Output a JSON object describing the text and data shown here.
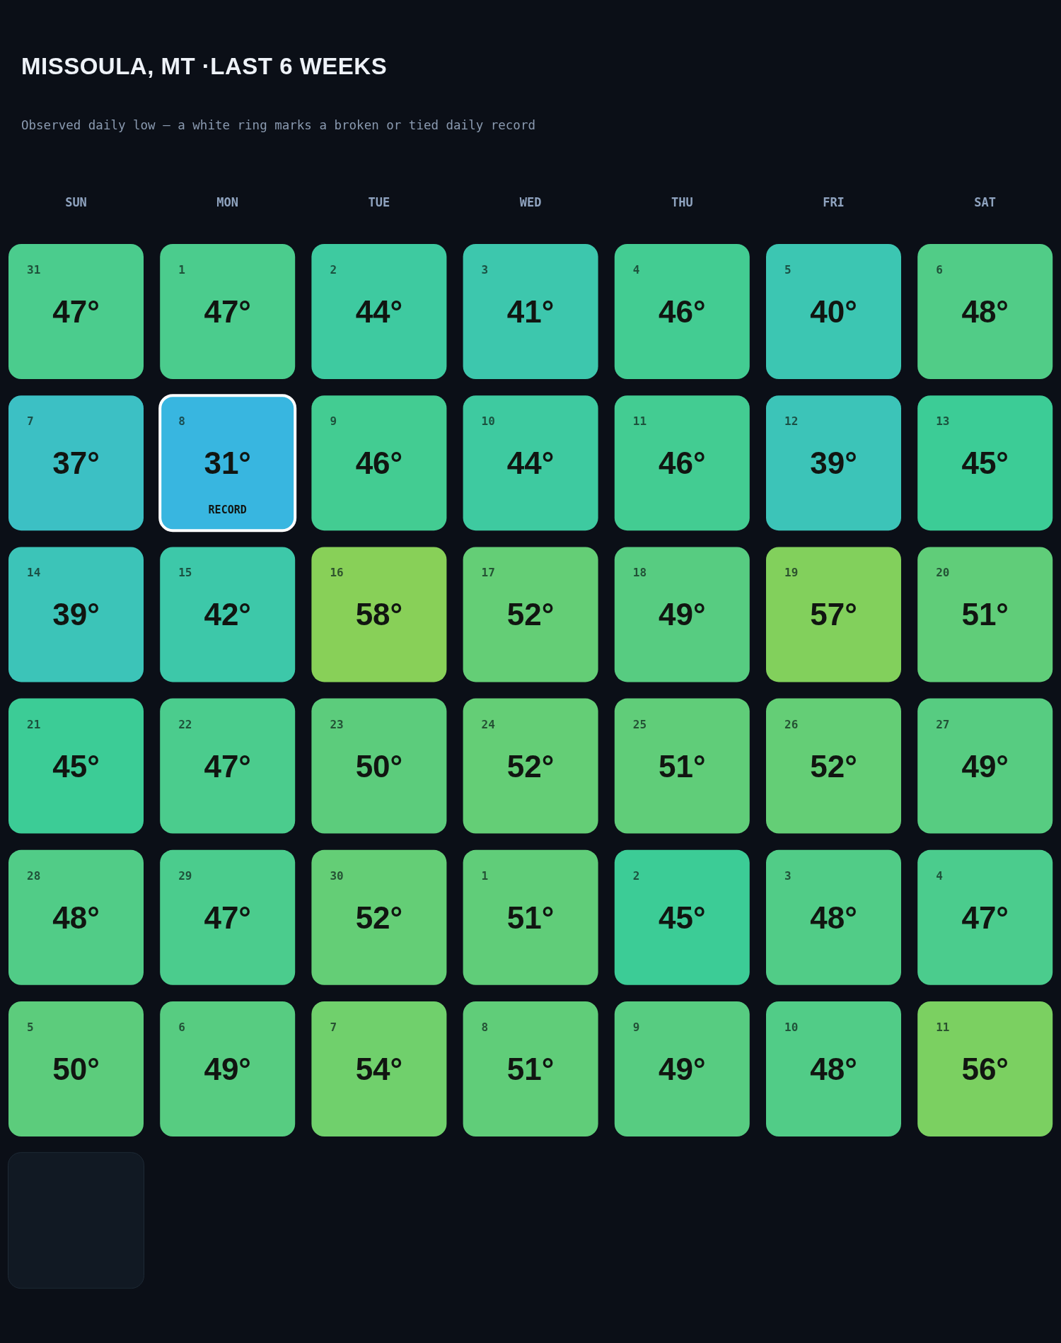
{
  "chart_data": {
    "type": "heatmap",
    "title": "MISSOULA, MT ·LAST 6 WEEKS",
    "subtitle": "Observed daily low — a white ring marks a broken or tied daily record",
    "categories": [
      "SUN",
      "MON",
      "TUE",
      "WED",
      "THU",
      "FRI",
      "SAT"
    ],
    "y_categories": [
      null,
      null,
      null,
      null,
      null,
      null
    ],
    "cells": [
      [
        47,
        47,
        44,
        41,
        46,
        40,
        48
      ],
      [
        37,
        31,
        46,
        44,
        46,
        39,
        45
      ],
      [
        39,
        42,
        58,
        52,
        49,
        57,
        51
      ],
      [
        45,
        47,
        50,
        52,
        51,
        52,
        49
      ],
      [
        48,
        47,
        52,
        51,
        45,
        48,
        47
      ],
      [
        50,
        49,
        54,
        51,
        49,
        48,
        56
      ]
    ],
    "cell_labels": [
      [
        "47°",
        "47°",
        "44°",
        "41°",
        "46°",
        "40°",
        "48°"
      ],
      [
        "37°",
        "31°",
        "46°",
        "44°",
        "46°",
        "39°",
        "45°"
      ],
      [
        "39°",
        "42°",
        "58°",
        "52°",
        "49°",
        "57°",
        "51°"
      ],
      [
        "45°",
        "47°",
        "50°",
        "52°",
        "51°",
        "52°",
        "49°"
      ],
      [
        "48°",
        "47°",
        "52°",
        "51°",
        "45°",
        "48°",
        "47°"
      ],
      [
        "50°",
        "49°",
        "54°",
        "51°",
        "49°",
        "48°",
        "56°"
      ]
    ],
    "annotations": [
      "31",
      "1",
      "2",
      "3",
      "4",
      "5",
      "6",
      "7",
      "8",
      "9",
      "10",
      "11",
      "12",
      "13",
      "14",
      "15",
      "16",
      "17",
      "18",
      "19",
      "20",
      "21",
      "22",
      "23",
      "24",
      "25",
      "26",
      "27",
      "28",
      "29",
      "30",
      "1",
      "2",
      "3",
      "4",
      "5",
      "6",
      "7",
      "8",
      "9",
      "10",
      "11",
      "RECORD"
    ]
  }
}
